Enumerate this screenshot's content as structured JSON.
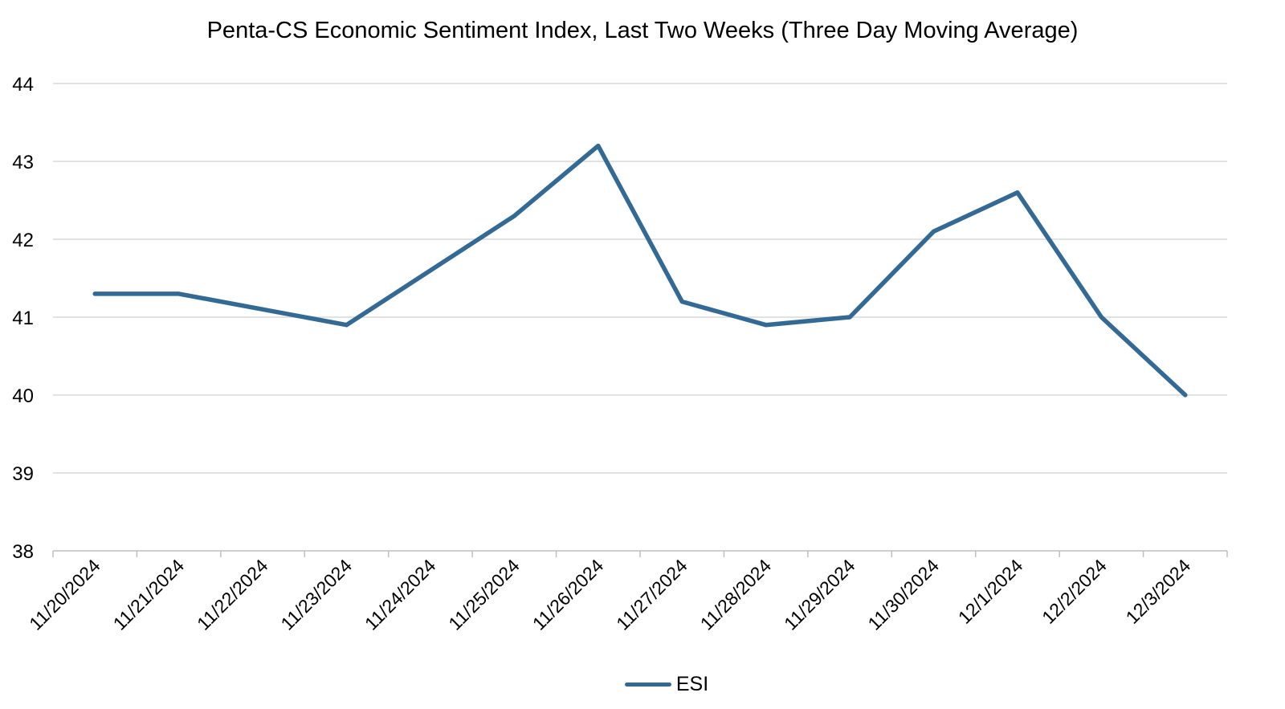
{
  "chart_data": {
    "type": "line",
    "title": "Penta-CS Economic Sentiment Index, Last Two Weeks (Three Day Moving Average)",
    "xlabel": "",
    "ylabel": "",
    "categories": [
      "11/20/2024",
      "11/21/2024",
      "11/22/2024",
      "11/23/2024",
      "11/24/2024",
      "11/25/2024",
      "11/26/2024",
      "11/27/2024",
      "11/28/2024",
      "11/29/2024",
      "11/30/2024",
      "12/1/2024",
      "12/2/2024",
      "12/3/2024"
    ],
    "ylim": [
      38,
      44
    ],
    "yticks": [
      "38",
      "39",
      "40",
      "41",
      "42",
      "43",
      "44"
    ],
    "grid": true,
    "legend_position": "bottom",
    "series": [
      {
        "name": "ESI",
        "color": "#336a95",
        "values": [
          41.3,
          41.3,
          41.1,
          40.9,
          41.6,
          42.3,
          43.2,
          41.2,
          40.9,
          41.0,
          42.1,
          42.6,
          41.0,
          40.0
        ]
      }
    ]
  }
}
